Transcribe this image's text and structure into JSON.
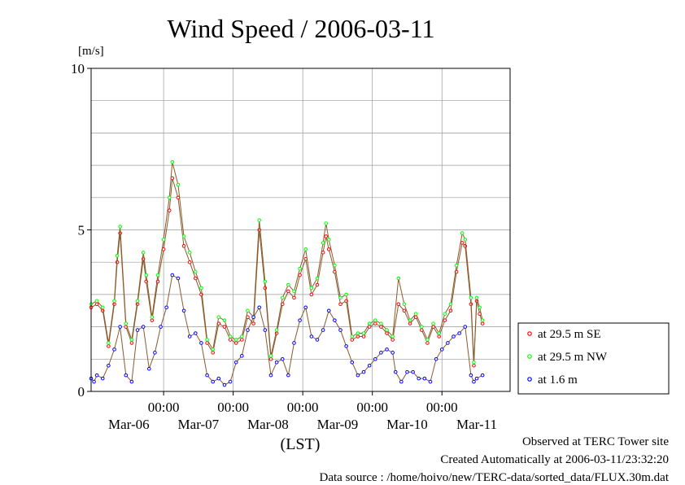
{
  "chart_data": {
    "type": "line",
    "title": "Wind Speed / 2006-03-11",
    "ylabel": "[m/s]",
    "xlabel": "(LST)",
    "ylim": [
      0,
      10
    ],
    "yticks": [
      "0",
      "5",
      "10"
    ],
    "x_ticks": [
      {
        "time": "00:00",
        "date": "Mar-07"
      },
      {
        "time": "00:00",
        "date": "Mar-08"
      },
      {
        "time": "00:00",
        "date": "Mar-09"
      },
      {
        "time": "00:00",
        "date": "Mar-10"
      },
      {
        "time": "00:00",
        "date": "Mar-11"
      }
    ],
    "x_date_labels": [
      "Mar-06",
      "Mar-07",
      "Mar-08",
      "Mar-09",
      "Mar-10",
      "Mar-11"
    ],
    "xlim": [
      "2006-03-05T23:00",
      "2006-03-11T23:30"
    ],
    "sample_interval": "30 min (values below read at ~1 h steps)",
    "grid": true,
    "legend_position": "right",
    "series": [
      {
        "name": "at 29.5 m SE",
        "color": "#ff0000",
        "points": [
          [
            "2006-03-05T23:00",
            2.6
          ],
          [
            "2006-03-06T01:00",
            2.7
          ],
          [
            "2006-03-06T03:00",
            2.5
          ],
          [
            "2006-03-06T05:00",
            1.4
          ],
          [
            "2006-03-06T07:00",
            2.7
          ],
          [
            "2006-03-06T08:00",
            4.0
          ],
          [
            "2006-03-06T09:00",
            4.9
          ],
          [
            "2006-03-06T11:00",
            2.0
          ],
          [
            "2006-03-06T13:00",
            1.5
          ],
          [
            "2006-03-06T15:00",
            2.7
          ],
          [
            "2006-03-06T17:00",
            4.1
          ],
          [
            "2006-03-06T18:00",
            3.4
          ],
          [
            "2006-03-06T20:00",
            2.2
          ],
          [
            "2006-03-06T22:00",
            3.4
          ],
          [
            "2006-03-07T00:00",
            4.4
          ],
          [
            "2006-03-07T02:00",
            5.6
          ],
          [
            "2006-03-07T03:00",
            6.6
          ],
          [
            "2006-03-07T05:00",
            6.0
          ],
          [
            "2006-03-07T07:00",
            4.5
          ],
          [
            "2006-03-07T09:00",
            4.0
          ],
          [
            "2006-03-07T11:00",
            3.5
          ],
          [
            "2006-03-07T13:00",
            3.0
          ],
          [
            "2006-03-07T15:00",
            1.5
          ],
          [
            "2006-03-07T17:00",
            1.2
          ],
          [
            "2006-03-07T19:00",
            2.1
          ],
          [
            "2006-03-07T21:00",
            2.0
          ],
          [
            "2006-03-07T23:00",
            1.6
          ],
          [
            "2006-03-08T01:00",
            1.5
          ],
          [
            "2006-03-08T03:00",
            1.6
          ],
          [
            "2006-03-08T05:00",
            2.3
          ],
          [
            "2006-03-08T07:00",
            2.1
          ],
          [
            "2006-03-08T09:00",
            5.0
          ],
          [
            "2006-03-08T11:00",
            3.2
          ],
          [
            "2006-03-08T13:00",
            1.0
          ],
          [
            "2006-03-08T15:00",
            1.8
          ],
          [
            "2006-03-08T17:00",
            2.7
          ],
          [
            "2006-03-08T19:00",
            3.1
          ],
          [
            "2006-03-08T21:00",
            2.9
          ],
          [
            "2006-03-08T23:00",
            3.6
          ],
          [
            "2006-03-09T01:00",
            4.1
          ],
          [
            "2006-03-09T03:00",
            3.0
          ],
          [
            "2006-03-09T05:00",
            3.3
          ],
          [
            "2006-03-09T07:00",
            4.3
          ],
          [
            "2006-03-09T08:00",
            4.8
          ],
          [
            "2006-03-09T09:00",
            4.4
          ],
          [
            "2006-03-09T11:00",
            3.7
          ],
          [
            "2006-03-09T13:00",
            2.7
          ],
          [
            "2006-03-09T15:00",
            2.8
          ],
          [
            "2006-03-09T17:00",
            1.6
          ],
          [
            "2006-03-09T19:00",
            1.7
          ],
          [
            "2006-03-09T21:00",
            1.7
          ],
          [
            "2006-03-09T23:00",
            2.0
          ],
          [
            "2006-03-10T01:00",
            2.1
          ],
          [
            "2006-03-10T03:00",
            2.0
          ],
          [
            "2006-03-10T05:00",
            1.8
          ],
          [
            "2006-03-10T07:00",
            1.6
          ],
          [
            "2006-03-10T09:00",
            2.7
          ],
          [
            "2006-03-10T11:00",
            2.5
          ],
          [
            "2006-03-10T13:00",
            2.1
          ],
          [
            "2006-03-10T15:00",
            2.3
          ],
          [
            "2006-03-10T17:00",
            1.9
          ],
          [
            "2006-03-10T19:00",
            1.5
          ],
          [
            "2006-03-10T21:00",
            2.0
          ],
          [
            "2006-03-10T23:00",
            1.7
          ],
          [
            "2006-03-11T01:00",
            2.2
          ],
          [
            "2006-03-11T03:00",
            2.5
          ],
          [
            "2006-03-11T05:00",
            3.7
          ],
          [
            "2006-03-11T07:00",
            4.6
          ],
          [
            "2006-03-11T08:00",
            4.5
          ],
          [
            "2006-03-11T10:00",
            2.7
          ],
          [
            "2006-03-11T11:00",
            0.8
          ],
          [
            "2006-03-11T12:00",
            2.8
          ],
          [
            "2006-03-11T13:00",
            2.4
          ],
          [
            "2006-03-11T14:00",
            2.1
          ]
        ]
      },
      {
        "name": "at 29.5 m NW",
        "color": "#00ff00",
        "points": [
          [
            "2006-03-05T23:00",
            2.7
          ],
          [
            "2006-03-06T01:00",
            2.8
          ],
          [
            "2006-03-06T03:00",
            2.6
          ],
          [
            "2006-03-06T05:00",
            1.5
          ],
          [
            "2006-03-06T07:00",
            2.8
          ],
          [
            "2006-03-06T08:00",
            4.2
          ],
          [
            "2006-03-06T09:00",
            5.1
          ],
          [
            "2006-03-06T11:00",
            2.1
          ],
          [
            "2006-03-06T13:00",
            1.6
          ],
          [
            "2006-03-06T15:00",
            2.8
          ],
          [
            "2006-03-06T17:00",
            4.3
          ],
          [
            "2006-03-06T18:00",
            3.6
          ],
          [
            "2006-03-06T20:00",
            2.3
          ],
          [
            "2006-03-06T22:00",
            3.6
          ],
          [
            "2006-03-07T00:00",
            4.7
          ],
          [
            "2006-03-07T02:00",
            6.0
          ],
          [
            "2006-03-07T03:00",
            7.1
          ],
          [
            "2006-03-07T05:00",
            6.4
          ],
          [
            "2006-03-07T07:00",
            4.8
          ],
          [
            "2006-03-07T09:00",
            4.3
          ],
          [
            "2006-03-07T11:00",
            3.7
          ],
          [
            "2006-03-07T13:00",
            3.2
          ],
          [
            "2006-03-07T15:00",
            1.6
          ],
          [
            "2006-03-07T17:00",
            1.3
          ],
          [
            "2006-03-07T19:00",
            2.3
          ],
          [
            "2006-03-07T21:00",
            2.2
          ],
          [
            "2006-03-07T23:00",
            1.7
          ],
          [
            "2006-03-08T01:00",
            1.6
          ],
          [
            "2006-03-08T03:00",
            1.7
          ],
          [
            "2006-03-08T05:00",
            2.5
          ],
          [
            "2006-03-08T07:00",
            2.3
          ],
          [
            "2006-03-08T09:00",
            5.3
          ],
          [
            "2006-03-08T11:00",
            3.4
          ],
          [
            "2006-03-08T13:00",
            1.1
          ],
          [
            "2006-03-08T15:00",
            1.9
          ],
          [
            "2006-03-08T17:00",
            2.9
          ],
          [
            "2006-03-08T19:00",
            3.3
          ],
          [
            "2006-03-08T21:00",
            3.1
          ],
          [
            "2006-03-08T23:00",
            3.8
          ],
          [
            "2006-03-09T01:00",
            4.4
          ],
          [
            "2006-03-09T03:00",
            3.2
          ],
          [
            "2006-03-09T05:00",
            3.5
          ],
          [
            "2006-03-09T07:00",
            4.6
          ],
          [
            "2006-03-09T08:00",
            5.2
          ],
          [
            "2006-03-09T09:00",
            4.7
          ],
          [
            "2006-03-09T11:00",
            3.9
          ],
          [
            "2006-03-09T13:00",
            2.9
          ],
          [
            "2006-03-09T15:00",
            3.0
          ],
          [
            "2006-03-09T17:00",
            1.7
          ],
          [
            "2006-03-09T19:00",
            1.8
          ],
          [
            "2006-03-09T21:00",
            1.8
          ],
          [
            "2006-03-09T23:00",
            2.1
          ],
          [
            "2006-03-10T01:00",
            2.2
          ],
          [
            "2006-03-10T03:00",
            2.1
          ],
          [
            "2006-03-10T05:00",
            1.9
          ],
          [
            "2006-03-10T07:00",
            1.7
          ],
          [
            "2006-03-10T09:00",
            3.5
          ],
          [
            "2006-03-10T11:00",
            2.7
          ],
          [
            "2006-03-10T13:00",
            2.2
          ],
          [
            "2006-03-10T15:00",
            2.4
          ],
          [
            "2006-03-10T17:00",
            2.0
          ],
          [
            "2006-03-10T19:00",
            1.6
          ],
          [
            "2006-03-10T21:00",
            2.1
          ],
          [
            "2006-03-10T23:00",
            1.8
          ],
          [
            "2006-03-11T01:00",
            2.4
          ],
          [
            "2006-03-11T03:00",
            2.7
          ],
          [
            "2006-03-11T05:00",
            3.9
          ],
          [
            "2006-03-11T07:00",
            4.9
          ],
          [
            "2006-03-11T08:00",
            4.7
          ],
          [
            "2006-03-11T10:00",
            2.9
          ],
          [
            "2006-03-11T11:00",
            0.9
          ],
          [
            "2006-03-11T12:00",
            2.9
          ],
          [
            "2006-03-11T13:00",
            2.6
          ],
          [
            "2006-03-11T14:00",
            2.2
          ]
        ]
      },
      {
        "name": "at 1.6 m",
        "color": "#0000ff",
        "points": [
          [
            "2006-03-05T23:00",
            0.4
          ],
          [
            "2006-03-06T00:00",
            0.3
          ],
          [
            "2006-03-06T01:00",
            0.5
          ],
          [
            "2006-03-06T03:00",
            0.4
          ],
          [
            "2006-03-06T05:00",
            0.8
          ],
          [
            "2006-03-06T07:00",
            1.3
          ],
          [
            "2006-03-06T09:00",
            2.0
          ],
          [
            "2006-03-06T11:00",
            0.5
          ],
          [
            "2006-03-06T13:00",
            0.3
          ],
          [
            "2006-03-06T15:00",
            1.9
          ],
          [
            "2006-03-06T17:00",
            2.0
          ],
          [
            "2006-03-06T19:00",
            0.7
          ],
          [
            "2006-03-06T21:00",
            1.2
          ],
          [
            "2006-03-06T23:00",
            2.0
          ],
          [
            "2006-03-07T01:00",
            2.6
          ],
          [
            "2006-03-07T03:00",
            3.6
          ],
          [
            "2006-03-07T05:00",
            3.5
          ],
          [
            "2006-03-07T07:00",
            2.5
          ],
          [
            "2006-03-07T09:00",
            1.7
          ],
          [
            "2006-03-07T11:00",
            1.8
          ],
          [
            "2006-03-07T13:00",
            1.5
          ],
          [
            "2006-03-07T15:00",
            0.5
          ],
          [
            "2006-03-07T17:00",
            0.3
          ],
          [
            "2006-03-07T19:00",
            0.4
          ],
          [
            "2006-03-07T21:00",
            0.2
          ],
          [
            "2006-03-07T23:00",
            0.3
          ],
          [
            "2006-03-08T01:00",
            0.9
          ],
          [
            "2006-03-08T03:00",
            1.1
          ],
          [
            "2006-03-08T05:00",
            1.9
          ],
          [
            "2006-03-08T07:00",
            2.3
          ],
          [
            "2006-03-08T09:00",
            2.6
          ],
          [
            "2006-03-08T11:00",
            1.9
          ],
          [
            "2006-03-08T13:00",
            0.5
          ],
          [
            "2006-03-08T15:00",
            0.9
          ],
          [
            "2006-03-08T17:00",
            1.0
          ],
          [
            "2006-03-08T19:00",
            0.5
          ],
          [
            "2006-03-08T21:00",
            1.5
          ],
          [
            "2006-03-08T23:00",
            2.2
          ],
          [
            "2006-03-09T01:00",
            2.6
          ],
          [
            "2006-03-09T03:00",
            1.7
          ],
          [
            "2006-03-09T05:00",
            1.6
          ],
          [
            "2006-03-09T07:00",
            1.9
          ],
          [
            "2006-03-09T09:00",
            2.5
          ],
          [
            "2006-03-09T11:00",
            2.2
          ],
          [
            "2006-03-09T13:00",
            1.9
          ],
          [
            "2006-03-09T15:00",
            1.4
          ],
          [
            "2006-03-09T17:00",
            0.9
          ],
          [
            "2006-03-09T19:00",
            0.5
          ],
          [
            "2006-03-09T21:00",
            0.6
          ],
          [
            "2006-03-09T23:00",
            0.8
          ],
          [
            "2006-03-10T01:00",
            1.0
          ],
          [
            "2006-03-10T03:00",
            1.2
          ],
          [
            "2006-03-10T05:00",
            1.3
          ],
          [
            "2006-03-10T07:00",
            1.2
          ],
          [
            "2006-03-10T08:00",
            0.6
          ],
          [
            "2006-03-10T10:00",
            0.3
          ],
          [
            "2006-03-10T12:00",
            0.6
          ],
          [
            "2006-03-10T14:00",
            0.6
          ],
          [
            "2006-03-10T16:00",
            0.4
          ],
          [
            "2006-03-10T18:00",
            0.4
          ],
          [
            "2006-03-10T20:00",
            0.3
          ],
          [
            "2006-03-10T22:00",
            1.0
          ],
          [
            "2006-03-11T00:00",
            1.3
          ],
          [
            "2006-03-11T02:00",
            1.5
          ],
          [
            "2006-03-11T04:00",
            1.7
          ],
          [
            "2006-03-11T06:00",
            1.8
          ],
          [
            "2006-03-11T08:00",
            2.0
          ],
          [
            "2006-03-11T10:00",
            0.5
          ],
          [
            "2006-03-11T11:00",
            0.3
          ],
          [
            "2006-03-11T12:00",
            0.4
          ],
          [
            "2006-03-11T14:00",
            0.5
          ]
        ]
      }
    ]
  },
  "footer": {
    "observed": "Observed at TERC Tower site",
    "created": "Created Automatically at 2006-03-11/23:32:20",
    "source": "Data source : /home/hoivo/new/TERC-data/sorted_data/FLUX.30m.dat"
  }
}
